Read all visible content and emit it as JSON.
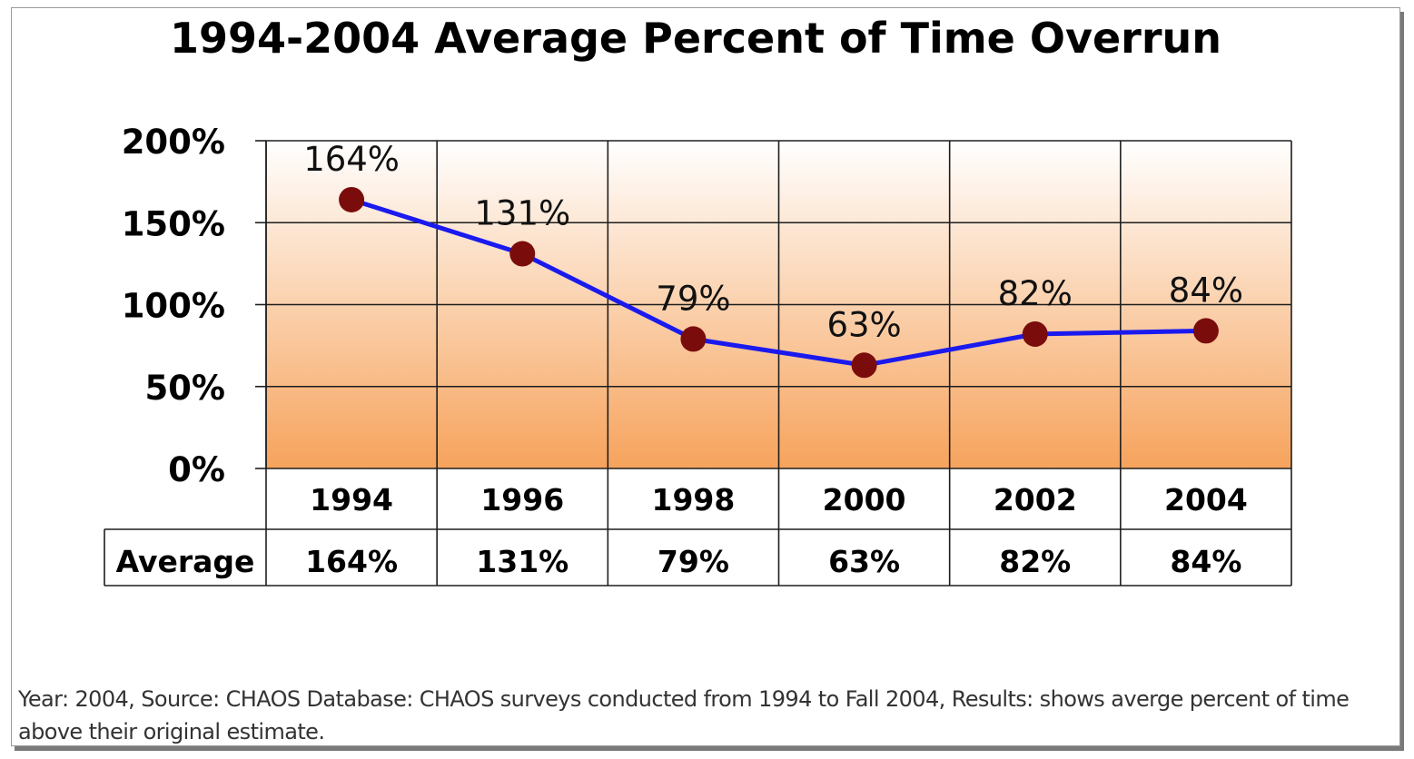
{
  "chart_data": {
    "type": "line",
    "title": "1994-2004 Average Percent of  Time Overrun",
    "categories": [
      "1994",
      "1996",
      "1998",
      "2000",
      "2002",
      "2004"
    ],
    "series": [
      {
        "values": [
          164,
          131,
          79,
          63,
          82,
          84
        ],
        "value_labels": [
          "164%",
          "131%",
          "79%",
          "63%",
          "82%",
          "84%"
        ],
        "line_color": "#1a1aee",
        "marker_color": "#7a0c0c"
      }
    ],
    "ylim": [
      0,
      200
    ],
    "yticks": [
      0,
      50,
      100,
      150,
      200
    ],
    "ytick_labels": [
      "0%",
      "50%",
      "100%",
      "150%",
      "200%"
    ],
    "grid": true,
    "data_table": {
      "row_label": "Average",
      "values": [
        "164%",
        "131%",
        "79%",
        "63%",
        "82%",
        "84%"
      ]
    },
    "plot_gradient": [
      "#ffffff",
      "#f6a35c"
    ]
  },
  "caption": "Year: 2004, Source: CHAOS Database: CHAOS surveys conducted from 1994 to Fall 2004, Results: shows averge percent of time above their original estimate."
}
